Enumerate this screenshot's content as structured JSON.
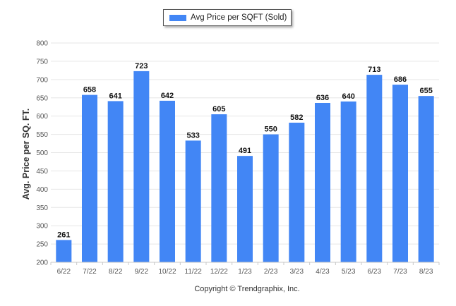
{
  "chart_data": {
    "type": "bar",
    "categories": [
      "6/22",
      "7/22",
      "8/22",
      "9/22",
      "10/22",
      "11/22",
      "12/22",
      "1/23",
      "2/23",
      "3/23",
      "4/23",
      "5/23",
      "6/23",
      "7/23",
      "8/23"
    ],
    "series": [
      {
        "name": "Avg Price per SQFT (Sold)",
        "values": [
          261,
          658,
          641,
          723,
          642,
          533,
          605,
          491,
          550,
          582,
          636,
          640,
          713,
          686,
          655
        ]
      }
    ],
    "title": "",
    "xlabel": "",
    "ylabel": "Avg. Price per SQ. FT.",
    "ylim": [
      200,
      800
    ],
    "yticks": [
      200,
      250,
      300,
      350,
      400,
      450,
      500,
      550,
      600,
      650,
      700,
      750,
      800
    ],
    "grid": true,
    "legend_position": "top-center",
    "bar_color": "#4286F5",
    "data_labels": true
  },
  "footer": {
    "copyright": "Copyright © Trendgraphix, Inc."
  }
}
